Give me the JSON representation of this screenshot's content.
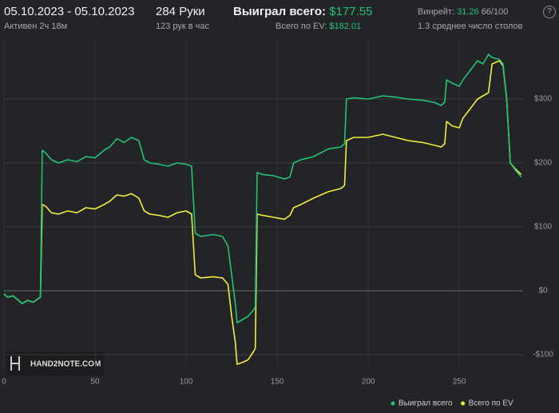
{
  "header": {
    "date_range": "05.10.2023 - 05.10.2023",
    "active": "Активен 2ч 18м",
    "hands": "284 Руки",
    "hands_per_hour": "123 рук в час",
    "won_label": "Выиграл всего:",
    "won_value": "$177.55",
    "ev_label": "Всего по EV:",
    "ev_value": "$182.01",
    "winrate_label": "Винрейт:",
    "winrate_value": "31.26",
    "winrate_unit": "66/100",
    "tables": "1.3 среднее число столов",
    "help": "?"
  },
  "watermark": "HAND2NOTE.COM",
  "chart_data": {
    "type": "line",
    "legend": "bottom-right",
    "grid": true,
    "x": [
      0,
      2,
      5,
      8,
      10,
      13,
      16,
      19,
      20,
      21,
      23,
      26,
      30,
      35,
      40,
      45,
      50,
      55,
      58,
      62,
      66,
      70,
      74,
      77,
      80,
      85,
      90,
      95,
      100,
      103,
      105,
      108,
      115,
      120,
      123,
      125,
      127,
      128,
      131,
      134,
      137,
      138,
      139,
      142,
      148,
      154,
      157,
      159,
      163,
      170,
      178,
      185,
      187,
      188,
      192,
      200,
      208,
      215,
      222,
      230,
      236,
      240,
      242,
      243,
      246,
      250,
      252,
      256,
      260,
      263,
      266,
      268,
      272,
      274,
      276,
      278,
      281,
      284
    ],
    "series": [
      {
        "name": "Выиграл всего",
        "color": "#22c474",
        "values": [
          -5,
          -10,
          -8,
          -15,
          -20,
          -15,
          -18,
          -12,
          -10,
          220,
          215,
          205,
          200,
          205,
          202,
          210,
          208,
          220,
          225,
          238,
          232,
          240,
          235,
          205,
          200,
          198,
          195,
          200,
          198,
          195,
          90,
          85,
          88,
          85,
          70,
          25,
          -20,
          -50,
          -45,
          -40,
          -30,
          -25,
          185,
          182,
          180,
          175,
          178,
          200,
          205,
          210,
          222,
          225,
          230,
          300,
          302,
          300,
          305,
          303,
          300,
          298,
          295,
          290,
          295,
          330,
          325,
          320,
          330,
          345,
          360,
          355,
          370,
          365,
          362,
          355,
          300,
          200,
          188,
          178
        ]
      },
      {
        "name": "Всего по EV",
        "color": "#f2ee3c",
        "values": [
          -5,
          -10,
          -8,
          -15,
          -20,
          -15,
          -18,
          -12,
          -10,
          135,
          132,
          122,
          120,
          125,
          122,
          130,
          128,
          135,
          140,
          150,
          148,
          152,
          145,
          125,
          120,
          118,
          115,
          122,
          125,
          120,
          25,
          20,
          22,
          20,
          10,
          -40,
          -80,
          -115,
          -112,
          -108,
          -95,
          -90,
          120,
          118,
          115,
          112,
          118,
          130,
          135,
          145,
          155,
          160,
          165,
          235,
          240,
          240,
          245,
          240,
          235,
          232,
          228,
          225,
          230,
          265,
          258,
          255,
          270,
          285,
          300,
          305,
          310,
          355,
          360,
          352,
          300,
          200,
          190,
          182
        ]
      }
    ],
    "xlim": [
      0,
      285
    ],
    "xticks": [
      0,
      50,
      100,
      150,
      200,
      250
    ],
    "ylim": [
      -120,
      395
    ],
    "yticks": [
      {
        "value": -100,
        "label": "-$100"
      },
      {
        "value": 0,
        "label": "$0"
      },
      {
        "value": 100,
        "label": "$100"
      },
      {
        "value": 200,
        "label": "$200"
      },
      {
        "value": 300,
        "label": "$300"
      }
    ]
  }
}
